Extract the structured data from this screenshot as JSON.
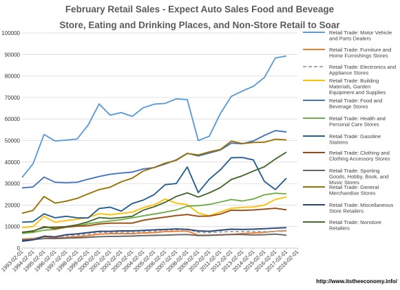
{
  "chart_data": {
    "type": "line",
    "title": "February Retail Sales - Expect Auto Sales Food and Beveage Store, Eating and Drinking Places, and Non-Store Retail to Soar",
    "xlabel": "",
    "ylabel": "",
    "ylim": [
      0,
      100000
    ],
    "yticks": [
      0,
      10000,
      20000,
      30000,
      40000,
      50000,
      60000,
      70000,
      80000,
      90000,
      100000
    ],
    "ytick_labels": [
      "0",
      "10000",
      "20000",
      "30000",
      "40000",
      "50000",
      "60000",
      "70000",
      "80000",
      "90000",
      "100000"
    ],
    "x": [
      "1993-02-01",
      "1994-02-01",
      "1995-02-01",
      "1996-02-01",
      "1997-02-01",
      "1998-02-01",
      "1999-02-01",
      "2000-02-01",
      "2001-02-01",
      "2002-02-01",
      "2003-02-01",
      "2004-02-01",
      "2005-02-01",
      "2006-02-01",
      "2007-02-01",
      "2008-02-01",
      "2009-02-01",
      "2010-02-01",
      "2011-02-01",
      "2012-02-01",
      "2013-02-01",
      "2014-02-01",
      "2015-02-01",
      "2016-02-01",
      "2017-02-01",
      "2018-02-01"
    ],
    "grid": true,
    "legend_position": "right",
    "series": [
      {
        "name": "Retail Trade: Motor Vehicle and Parts Dealers",
        "color": "#5b9bd5",
        "dashed": false,
        "values": [
          32800,
          39200,
          52800,
          49800,
          50200,
          50700,
          57200,
          67000,
          61800,
          63000,
          61200,
          65200,
          66900,
          67300,
          69400,
          69000,
          50000,
          52000,
          62500,
          70500,
          73000,
          75200,
          79300,
          88400,
          89300,
          null
        ]
      },
      {
        "name": "Retail Trade: Furniture and Home Furnishings Stores",
        "color": "#ed7d31",
        "dashed": false,
        "values": [
          4200,
          4500,
          5200,
          4800,
          5000,
          5300,
          5700,
          6500,
          6700,
          6700,
          6700,
          7000,
          7200,
          7700,
          7800,
          7900,
          6000,
          6000,
          6200,
          6400,
          6700,
          7000,
          7300,
          7800,
          8100,
          null
        ]
      },
      {
        "name": "Retail Trade: Electronics and Appliance Stores",
        "color": "#a5a5a5",
        "dashed": true,
        "values": [
          3800,
          4200,
          5600,
          5300,
          5700,
          6000,
          6400,
          7300,
          7300,
          7300,
          7200,
          7600,
          7900,
          8400,
          8500,
          8800,
          7300,
          7200,
          7500,
          7700,
          7700,
          7600,
          7700,
          7800,
          7800,
          null
        ]
      },
      {
        "name": "Retail Trade: Building Materials, Garden Equipment and Supplies",
        "color": "#ffc000",
        "dashed": false,
        "values": [
          9500,
          10000,
          14800,
          12000,
          12800,
          13400,
          14200,
          16000,
          15500,
          16100,
          16700,
          18800,
          20100,
          22800,
          20900,
          20200,
          16300,
          15000,
          16800,
          18500,
          18900,
          19100,
          20000,
          22600,
          23800,
          null
        ]
      },
      {
        "name": "Retail Trade: Food and Beverage Stores",
        "color": "#4472c4",
        "dashed": false,
        "values": [
          28000,
          28400,
          33000,
          30600,
          30400,
          30600,
          32000,
          33300,
          34300,
          34900,
          35300,
          36800,
          37400,
          39100,
          41000,
          44100,
          42800,
          44200,
          45600,
          48800,
          48500,
          49800,
          52400,
          54600,
          54000,
          null
        ]
      },
      {
        "name": "Retail Trade: Health and Personal Care Stores",
        "color": "#70ad47",
        "dashed": false,
        "values": [
          6800,
          7300,
          8300,
          8700,
          9700,
          10200,
          11300,
          12000,
          12600,
          13200,
          14100,
          15000,
          15800,
          16700,
          17700,
          19500,
          19700,
          20300,
          21400,
          22600,
          21900,
          22800,
          24800,
          25500,
          25200,
          null
        ]
      },
      {
        "name": "Retail Trade: Gasoline Stations",
        "color": "#255e91",
        "dashed": false,
        "values": [
          12000,
          12300,
          15900,
          14100,
          14800,
          14100,
          14000,
          18400,
          19000,
          17200,
          20700,
          22300,
          24900,
          29500,
          30000,
          37700,
          25800,
          32000,
          36400,
          42000,
          42100,
          41000,
          31000,
          27200,
          32500,
          null
        ]
      },
      {
        "name": "Retail Trade: Clothing and Clothing Accessory Stores",
        "color": "#9e480e",
        "dashed": false,
        "values": [
          7400,
          7800,
          10000,
          9000,
          9700,
          10200,
          10400,
          11200,
          11600,
          11600,
          11600,
          12900,
          13700,
          14400,
          15100,
          15600,
          14800,
          14900,
          15800,
          17600,
          17500,
          17700,
          18100,
          18500,
          17800,
          null
        ]
      },
      {
        "name": "Retail Trade: Sporting Goods, Hobby, Book, and Music Stores",
        "color": "#636363",
        "dashed": false,
        "values": [
          3800,
          4000,
          4400,
          4400,
          4600,
          4800,
          5000,
          5300,
          5400,
          5500,
          5600,
          5800,
          5900,
          6000,
          6200,
          6300,
          5800,
          5900,
          6100,
          6300,
          6300,
          6100,
          6200,
          6500,
          6000,
          null
        ]
      },
      {
        "name": "Retail Trade: General Merchandise Stores",
        "color": "#997300",
        "dashed": false,
        "values": [
          16200,
          17500,
          24000,
          20900,
          21800,
          23100,
          25200,
          27200,
          28300,
          30800,
          32500,
          35800,
          37500,
          39500,
          40800,
          44000,
          43300,
          44700,
          45800,
          49700,
          48600,
          49100,
          49200,
          50600,
          50300,
          null
        ]
      },
      {
        "name": "Retail Trade: Miscellaneous Store Retailers",
        "color": "#264478",
        "dashed": false,
        "values": [
          3200,
          3800,
          5500,
          5200,
          6200,
          6600,
          7200,
          7800,
          7800,
          8000,
          8000,
          8200,
          8500,
          8700,
          8900,
          8700,
          8000,
          7800,
          8300,
          8800,
          8700,
          8800,
          9000,
          9300,
          9500,
          null
        ]
      },
      {
        "name": "Retail Trade: Nonstore Retailers",
        "color": "#43682b",
        "dashed": false,
        "values": [
          7300,
          8000,
          9600,
          9700,
          10000,
          10800,
          12200,
          14200,
          13800,
          14200,
          14800,
          17600,
          19200,
          21300,
          24000,
          25700,
          23700,
          25700,
          28100,
          31900,
          33600,
          35800,
          37800,
          41400,
          44600,
          null
        ]
      }
    ]
  },
  "footer": {
    "url": "http://www.itstheeconomy.info/"
  }
}
